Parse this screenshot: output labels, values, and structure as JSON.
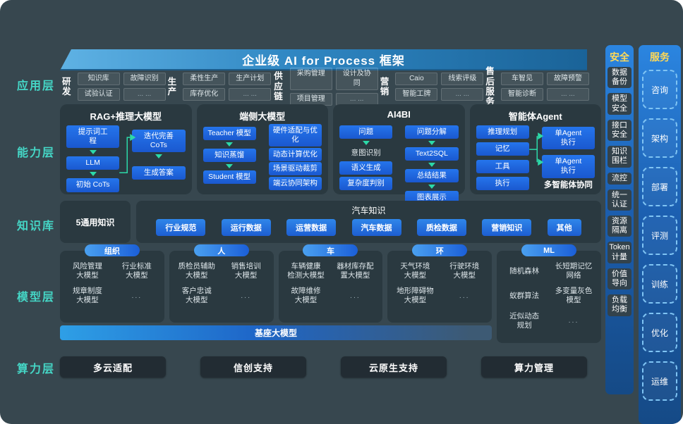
{
  "title": "企业级 AI for Process 框架",
  "colors": {
    "canvas": "#37474f",
    "accent_cyan": "#45d6c6",
    "accent_yellow": "#ffd957",
    "box_blue": "#1e63d8",
    "arrow_green": "#2cd9a8"
  },
  "layers": [
    {
      "label": "应用层"
    },
    {
      "label": "能力层"
    },
    {
      "label": "知识库"
    },
    {
      "label": "模型层"
    },
    {
      "label": "算力层"
    }
  ],
  "application": {
    "groups": [
      {
        "name": "研发",
        "items": [
          "知识库",
          "故障识别",
          "试验认证",
          "... ..."
        ]
      },
      {
        "name": "生产",
        "items": [
          "柔性生产",
          "生产计划",
          "库存优化",
          "... ..."
        ]
      },
      {
        "name": "供应\n链",
        "items": [
          "采购管理",
          "设计及协同",
          "项目管理",
          "... ..."
        ]
      },
      {
        "name": "营销",
        "items": [
          "Caio",
          "线索评级",
          "智能工牌",
          "... ..."
        ]
      },
      {
        "name": "售后\n服务",
        "items": [
          "车智见",
          "故障预警",
          "智能诊断",
          "... ..."
        ]
      }
    ]
  },
  "capability": {
    "cards": [
      {
        "id": "rag",
        "title": "RAG+推理大模型",
        "flow_left": [
          "提示词工\n程",
          "LLM",
          "初始 CoTs"
        ],
        "flow_right": [
          "迭代完善\nCoTs",
          "生成答案"
        ]
      },
      {
        "id": "edge",
        "title": "端侧大模型",
        "flow_left": [
          "Teacher 模型",
          "知识蒸馏",
          "Student 模型"
        ],
        "list_right": [
          "硬件适配与优\n化",
          "动态计算优化",
          "场景驱动裁剪",
          "端云协同架构"
        ]
      },
      {
        "id": "ai4bi",
        "title": "AI4BI",
        "col_left": [
          {
            "text": "问题",
            "box": true,
            "arrow_after": true
          },
          {
            "text": "意图识别",
            "box": false,
            "arrow_after": false
          },
          {
            "text": "语义生成",
            "box": true,
            "arrow_after": false
          },
          {
            "text": "复杂度判别",
            "box": true,
            "arrow_after": false
          }
        ],
        "flow_right": [
          "问题分解",
          "Text2SQL",
          "总结结果",
          "图表展示"
        ]
      },
      {
        "id": "agent",
        "title": "智能体Agent",
        "list_left": [
          "推理规划",
          "记忆",
          "工具",
          "执行"
        ],
        "list_right": [
          "单Agent\n执行",
          "单Agent\n执行"
        ],
        "caption": "多智能体协同"
      }
    ]
  },
  "knowledge": {
    "general": "5通用知识",
    "auto_title": "汽车知识",
    "pills": [
      "行业规范",
      "运行数据",
      "运营数据",
      "汽车数据",
      "质检数据",
      "营销知识",
      "其他"
    ]
  },
  "model": {
    "groups": [
      {
        "tag": "组织",
        "items": [
          "风险管理\n大模型",
          "行业标准\n大模型",
          "规章制度\n大模型",
          "..."
        ]
      },
      {
        "tag": "人",
        "items": [
          "质检员辅助\n大模型",
          "销售培训\n大模型",
          "客户忠诚\n大模型",
          "..."
        ]
      },
      {
        "tag": "车",
        "items": [
          "车辆健康\n检测大模型",
          "器材库存配\n置大模型",
          "故障维修\n大模型",
          "..."
        ]
      },
      {
        "tag": "环",
        "items": [
          "天气环境\n大模型",
          "行驶环境\n大模型",
          "地形障碍物\n大模型",
          "..."
        ]
      },
      {
        "tag": "ML",
        "items": [
          "随机森林",
          "长短期记忆\n网络",
          "蚁群算法",
          "多变量灰色\n模型",
          "近似动态\n规划",
          "..."
        ]
      }
    ],
    "base": "基座大模型"
  },
  "compute": {
    "items": [
      "多云适配",
      "信创支持",
      "云原生支持",
      "算力管理"
    ]
  },
  "security": {
    "header": "安全",
    "items": [
      "数据\n备份",
      "模型\n安全",
      "接口\n安全",
      "知识\n围栏",
      "流控",
      "统一\n认证",
      "资源\n隔离",
      "Token\n计量",
      "价值\n导向",
      "负载\n均衡"
    ]
  },
  "services": {
    "header": "服务",
    "items": [
      "咨询",
      "架构",
      "部署",
      "评测",
      "训练",
      "优化",
      "运维"
    ]
  }
}
